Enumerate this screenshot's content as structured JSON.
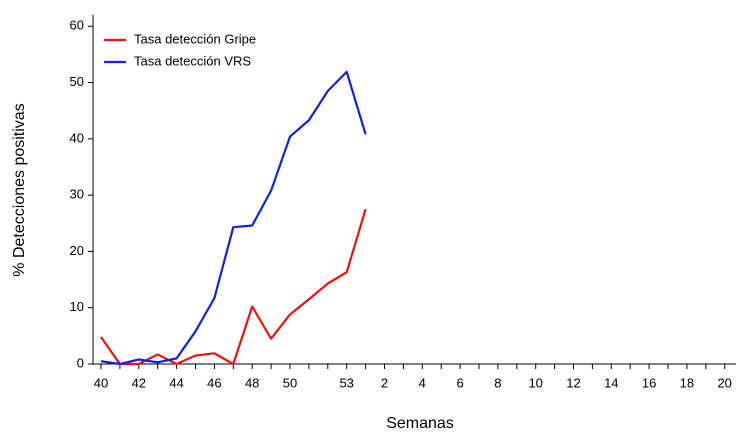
{
  "chart_data": {
    "type": "line",
    "x_label": "Semanas",
    "y_label": "% Detecciones positivas",
    "categories": [
      "40",
      null,
      "42",
      null,
      "44",
      null,
      "46",
      null,
      "48",
      null,
      "50",
      null,
      null,
      "53",
      null,
      "2",
      null,
      "4",
      null,
      "6",
      null,
      "8",
      null,
      "10",
      null,
      "12",
      null,
      "14",
      null,
      "16",
      null,
      "18",
      null,
      "20"
    ],
    "series": [
      {
        "name": "Tasa detección Gripe",
        "color": "#ee1111",
        "values": [
          4.8,
          0,
          0,
          1.7,
          0,
          1.5,
          1.9,
          0,
          10.2,
          4.5,
          8.8,
          11.5,
          14.3,
          16.3,
          27.5,
          null,
          null,
          null,
          null,
          null,
          null,
          null,
          null,
          null,
          null,
          null,
          null,
          null,
          null,
          null,
          null,
          null,
          null,
          null
        ]
      },
      {
        "name": "Tasa detección VRS",
        "color": "#1122dd",
        "values": [
          0.5,
          0,
          0.8,
          0.3,
          1.0,
          5.8,
          11.7,
          24.3,
          24.6,
          30.8,
          40.4,
          43.3,
          48.5,
          51.9,
          40.8,
          null,
          null,
          null,
          null,
          null,
          null,
          null,
          null,
          null,
          null,
          null,
          null,
          null,
          null,
          null,
          null,
          null,
          null,
          null
        ]
      }
    ],
    "ylim": [
      0,
      62
    ],
    "yticks": [
      0,
      10,
      20,
      30,
      40,
      50,
      60
    ],
    "grid": false,
    "legend": "upper left"
  }
}
